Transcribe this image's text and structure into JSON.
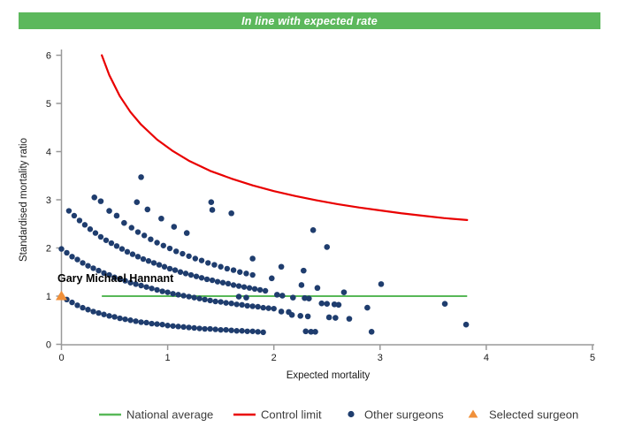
{
  "header": {
    "title": "In line with expected rate",
    "bg_color": "#5cb85c",
    "text_color": "#ffffff"
  },
  "chart_data": {
    "type": "scatter",
    "title": "",
    "xlabel": "Expected mortality",
    "ylabel": "Standardised mortality ratio",
    "xlim": [
      0,
      5
    ],
    "ylim": [
      0,
      6
    ],
    "x_ticks": [
      0,
      1,
      2,
      3,
      4,
      5
    ],
    "y_ticks": [
      0,
      1,
      2,
      3,
      4,
      5,
      6
    ],
    "grid": false,
    "legend_position": "bottom",
    "axis_color": "#999999",
    "national_average": {
      "label": "National average",
      "color": "#58b858",
      "y": 1.0,
      "x_start": 0.38,
      "x_end": 3.82
    },
    "control_limit": {
      "label": "Control limit",
      "color": "#e90000",
      "points": [
        [
          0.38,
          6.0
        ],
        [
          0.45,
          5.59
        ],
        [
          0.55,
          5.15
        ],
        [
          0.65,
          4.82
        ],
        [
          0.75,
          4.56
        ],
        [
          0.9,
          4.25
        ],
        [
          1.05,
          4.01
        ],
        [
          1.2,
          3.81
        ],
        [
          1.4,
          3.6
        ],
        [
          1.6,
          3.44
        ],
        [
          1.8,
          3.3
        ],
        [
          2.0,
          3.18
        ],
        [
          2.2,
          3.08
        ],
        [
          2.4,
          2.99
        ],
        [
          2.6,
          2.91
        ],
        [
          2.8,
          2.84
        ],
        [
          3.0,
          2.78
        ],
        [
          3.2,
          2.72
        ],
        [
          3.4,
          2.67
        ],
        [
          3.6,
          2.62
        ],
        [
          3.82,
          2.58
        ]
      ]
    },
    "other_surgeons": {
      "label": "Other surgeons",
      "color": "#1f3d6e",
      "bands": [
        [
          [
            0.0,
            1.0
          ],
          [
            0.05,
            0.93
          ],
          [
            0.1,
            0.87
          ],
          [
            0.15,
            0.81
          ],
          [
            0.2,
            0.76
          ],
          [
            0.25,
            0.72
          ],
          [
            0.3,
            0.68
          ],
          [
            0.35,
            0.65
          ],
          [
            0.4,
            0.62
          ],
          [
            0.45,
            0.59
          ],
          [
            0.5,
            0.57
          ],
          [
            0.55,
            0.54
          ],
          [
            0.6,
            0.52
          ],
          [
            0.65,
            0.5
          ],
          [
            0.7,
            0.48
          ],
          [
            0.75,
            0.46
          ],
          [
            0.8,
            0.45
          ],
          [
            0.85,
            0.43
          ],
          [
            0.9,
            0.42
          ],
          [
            0.95,
            0.41
          ],
          [
            1.0,
            0.39
          ],
          [
            1.05,
            0.38
          ],
          [
            1.1,
            0.37
          ],
          [
            1.15,
            0.36
          ],
          [
            1.2,
            0.35
          ],
          [
            1.25,
            0.34
          ],
          [
            1.3,
            0.33
          ],
          [
            1.35,
            0.32
          ],
          [
            1.4,
            0.32
          ],
          [
            1.45,
            0.31
          ],
          [
            1.5,
            0.3
          ],
          [
            1.55,
            0.3
          ],
          [
            1.6,
            0.29
          ],
          [
            1.65,
            0.28
          ],
          [
            1.7,
            0.28
          ],
          [
            1.75,
            0.27
          ],
          [
            1.8,
            0.27
          ],
          [
            1.85,
            0.26
          ],
          [
            1.9,
            0.25
          ]
        ],
        [
          [
            0.0,
            1.98
          ],
          [
            0.05,
            1.9
          ],
          [
            0.1,
            1.82
          ],
          [
            0.15,
            1.76
          ],
          [
            0.2,
            1.69
          ],
          [
            0.25,
            1.63
          ],
          [
            0.3,
            1.58
          ],
          [
            0.35,
            1.53
          ],
          [
            0.4,
            1.48
          ],
          [
            0.45,
            1.44
          ],
          [
            0.5,
            1.39
          ],
          [
            0.55,
            1.35
          ],
          [
            0.6,
            1.32
          ],
          [
            0.65,
            1.28
          ],
          [
            0.7,
            1.25
          ],
          [
            0.75,
            1.22
          ],
          [
            0.8,
            1.19
          ],
          [
            0.85,
            1.16
          ],
          [
            0.9,
            1.13
          ],
          [
            0.95,
            1.1
          ],
          [
            1.0,
            1.08
          ],
          [
            1.05,
            1.05
          ],
          [
            1.1,
            1.03
          ],
          [
            1.15,
            1.01
          ],
          [
            1.2,
            0.99
          ],
          [
            1.25,
            0.97
          ],
          [
            1.3,
            0.95
          ],
          [
            1.35,
            0.93
          ],
          [
            1.4,
            0.91
          ],
          [
            1.45,
            0.89
          ],
          [
            1.5,
            0.88
          ],
          [
            1.55,
            0.86
          ],
          [
            1.6,
            0.85
          ],
          [
            1.65,
            0.83
          ],
          [
            1.7,
            0.82
          ],
          [
            1.75,
            0.8
          ],
          [
            1.8,
            0.79
          ],
          [
            1.85,
            0.78
          ],
          [
            1.9,
            0.76
          ],
          [
            1.95,
            0.75
          ],
          [
            2.0,
            0.74
          ]
        ],
        [
          [
            0.07,
            2.77
          ],
          [
            0.12,
            2.67
          ],
          [
            0.17,
            2.57
          ],
          [
            0.22,
            2.48
          ],
          [
            0.27,
            2.39
          ],
          [
            0.32,
            2.31
          ],
          [
            0.37,
            2.23
          ],
          [
            0.42,
            2.16
          ],
          [
            0.47,
            2.1
          ],
          [
            0.52,
            2.04
          ],
          [
            0.57,
            1.98
          ],
          [
            0.62,
            1.92
          ],
          [
            0.67,
            1.87
          ],
          [
            0.72,
            1.82
          ],
          [
            0.77,
            1.77
          ],
          [
            0.82,
            1.73
          ],
          [
            0.87,
            1.69
          ],
          [
            0.92,
            1.65
          ],
          [
            0.97,
            1.61
          ],
          [
            1.02,
            1.57
          ],
          [
            1.07,
            1.54
          ],
          [
            1.12,
            1.5
          ],
          [
            1.17,
            1.47
          ],
          [
            1.22,
            1.44
          ],
          [
            1.27,
            1.41
          ],
          [
            1.32,
            1.38
          ],
          [
            1.37,
            1.35
          ],
          [
            1.42,
            1.33
          ],
          [
            1.47,
            1.3
          ],
          [
            1.52,
            1.28
          ],
          [
            1.57,
            1.26
          ],
          [
            1.62,
            1.23
          ],
          [
            1.67,
            1.21
          ],
          [
            1.72,
            1.19
          ],
          [
            1.77,
            1.17
          ],
          [
            1.82,
            1.15
          ],
          [
            1.87,
            1.13
          ],
          [
            1.92,
            1.11
          ]
        ],
        [
          [
            0.66,
            2.42
          ],
          [
            0.72,
            2.33
          ],
          [
            0.78,
            2.26
          ],
          [
            0.84,
            2.18
          ],
          [
            0.9,
            2.11
          ],
          [
            0.96,
            2.05
          ],
          [
            1.02,
            1.99
          ],
          [
            1.08,
            1.93
          ],
          [
            1.14,
            1.88
          ],
          [
            1.2,
            1.83
          ],
          [
            1.26,
            1.78
          ],
          [
            1.32,
            1.74
          ],
          [
            1.38,
            1.69
          ],
          [
            1.44,
            1.65
          ],
          [
            1.5,
            1.61
          ],
          [
            1.56,
            1.57
          ],
          [
            1.62,
            1.54
          ],
          [
            1.68,
            1.5
          ],
          [
            1.74,
            1.47
          ],
          [
            1.8,
            1.44
          ]
        ]
      ],
      "points": [
        [
          0.31,
          3.05
        ],
        [
          0.37,
          2.97
        ],
        [
          0.45,
          2.77
        ],
        [
          0.52,
          2.67
        ],
        [
          0.59,
          2.52
        ],
        [
          0.71,
          2.95
        ],
        [
          0.81,
          2.8
        ],
        [
          0.94,
          2.61
        ],
        [
          1.06,
          2.44
        ],
        [
          1.18,
          2.31
        ],
        [
          0.75,
          3.47
        ],
        [
          1.41,
          2.95
        ],
        [
          1.42,
          2.79
        ],
        [
          1.6,
          2.72
        ],
        [
          1.8,
          1.78
        ],
        [
          2.07,
          1.61
        ],
        [
          1.98,
          1.37
        ],
        [
          2.37,
          2.37
        ],
        [
          2.5,
          2.02
        ],
        [
          2.28,
          1.53
        ],
        [
          2.26,
          1.23
        ],
        [
          2.41,
          1.17
        ],
        [
          3.01,
          1.25
        ],
        [
          2.66,
          1.08
        ],
        [
          1.67,
          0.99
        ],
        [
          1.74,
          0.97
        ],
        [
          2.03,
          1.03
        ],
        [
          2.08,
          1.01
        ],
        [
          2.18,
          0.97
        ],
        [
          2.29,
          0.96
        ],
        [
          2.33,
          0.95
        ],
        [
          2.45,
          0.85
        ],
        [
          2.5,
          0.84
        ],
        [
          2.57,
          0.83
        ],
        [
          2.61,
          0.82
        ],
        [
          2.88,
          0.76
        ],
        [
          3.61,
          0.84
        ],
        [
          2.07,
          0.68
        ],
        [
          2.14,
          0.67
        ],
        [
          2.17,
          0.61
        ],
        [
          2.25,
          0.59
        ],
        [
          2.32,
          0.58
        ],
        [
          2.52,
          0.56
        ],
        [
          2.58,
          0.55
        ],
        [
          2.71,
          0.53
        ],
        [
          3.81,
          0.41
        ],
        [
          2.3,
          0.27
        ],
        [
          2.35,
          0.26
        ],
        [
          2.39,
          0.26
        ],
        [
          2.92,
          0.26
        ]
      ]
    },
    "selected_surgeon": {
      "label": "Selected surgeon",
      "annotation": "Gary Michael Hannant",
      "color": "#f0903a",
      "x": 0.0,
      "y": 1.0
    }
  }
}
